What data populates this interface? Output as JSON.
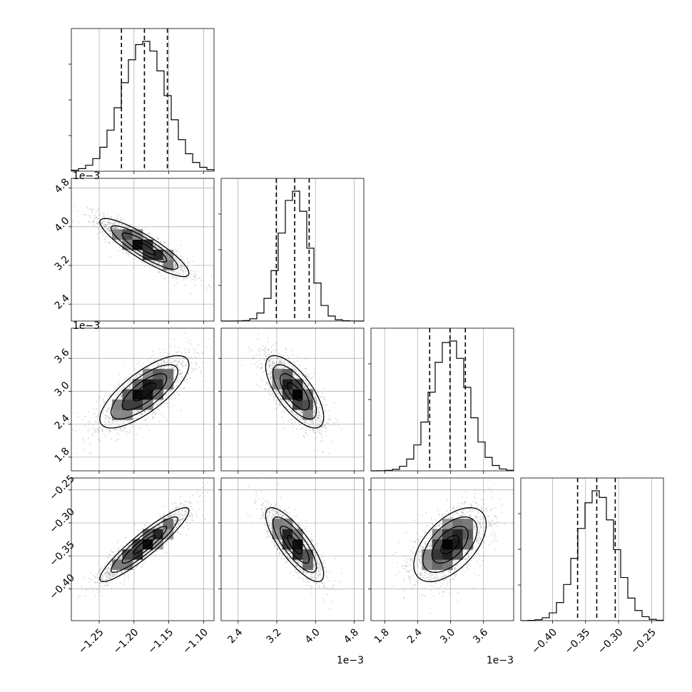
{
  "chart_data": {
    "type": "corner",
    "parameters": [
      {
        "range": [
          -1.29,
          -1.085
        ],
        "ticks": [
          -1.25,
          -1.2,
          -1.15,
          -1.1
        ],
        "tick_labels": [
          "−1.25",
          "−1.20",
          "−1.15",
          "−1.10"
        ],
        "offset_label": "",
        "mean": -1.185,
        "std": 0.032,
        "quantiles": [
          -1.218,
          -1.185,
          -1.152
        ]
      },
      {
        "range": [
          2.05,
          5.0
        ],
        "ticks": [
          2.4,
          3.2,
          4.0,
          4.8
        ],
        "tick_labels": [
          "2.4",
          "3.2",
          "4.0",
          "4.8"
        ],
        "offset_label": "1e−3",
        "mean": 3.57,
        "std": 0.3,
        "quantiles": [
          3.19,
          3.57,
          3.87
        ]
      },
      {
        "range": [
          1.55,
          4.15
        ],
        "ticks": [
          1.8,
          2.4,
          3.0,
          3.6
        ],
        "tick_labels": [
          "1.8",
          "2.4",
          "3.0",
          "3.6"
        ],
        "offset_label": "1e−3",
        "mean": 2.99,
        "std": 0.33,
        "quantiles": [
          2.62,
          2.99,
          3.27
        ]
      },
      {
        "range": [
          -0.448,
          -0.232
        ],
        "ticks": [
          -0.4,
          -0.35,
          -0.3,
          -0.25
        ],
        "tick_labels": [
          "−0.40",
          "−0.35",
          "−0.30",
          "−0.25"
        ],
        "offset_label": "",
        "mean": -0.333,
        "std": 0.028,
        "quantiles": [
          -0.362,
          -0.333,
          -0.305
        ]
      }
    ],
    "correlations": {
      "1_0": -0.88,
      "2_0": 0.75,
      "2_1": -0.7,
      "3_0": 0.92,
      "3_1": -0.8,
      "3_2": 0.55
    },
    "histogram_bins": 20,
    "grid": true,
    "contour_levels": [
      0.5,
      1.0,
      1.5,
      2.0
    ]
  }
}
